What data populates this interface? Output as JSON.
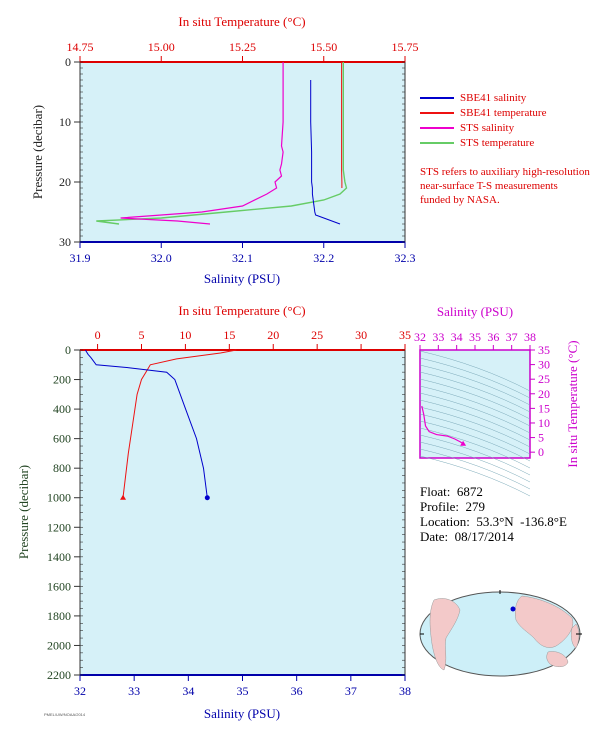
{
  "colors": {
    "salinity": "#0000cc",
    "temperature": "#ee1111",
    "sts_salinity": "#ee00cc",
    "sts_temperature": "#66cc66",
    "plot_bg": "#d6f1f8",
    "top_axis": "#dd0000",
    "bottom_axis": "#0000aa",
    "mini_axis": "#cc00cc",
    "left_axis": "#333333",
    "land": "#f3c9c9",
    "ocean": "#cdeff8"
  },
  "legend": {
    "items": [
      {
        "label": "SBE41 salinity",
        "color": "#0000cc"
      },
      {
        "label": "SBE41 temperature",
        "color": "#ee1111"
      },
      {
        "label": "STS salinity",
        "color": "#ee00cc"
      },
      {
        "label": "STS temperature",
        "color": "#66cc66"
      }
    ]
  },
  "note": "STS refers to auxiliary high-resolution near-surface T-S measurements funded by NASA.",
  "info": {
    "float_label": "Float:",
    "float": "6872",
    "profile_label": "Profile:",
    "profile": "279",
    "location_label": "Location:",
    "location": "53.3°N  -136.8°E",
    "date_label": "Date:",
    "date": "08/17/2014"
  },
  "credit": "PMEL/UW/NOAA/2014",
  "chart_data": [
    {
      "type": "line",
      "name": "near-surface",
      "top_axis_label": "In situ Temperature (°C)",
      "bottom_axis_label": "Salinity (PSU)",
      "left_axis_label": "Pressure (decibar)",
      "top_ticks": [
        "14.75",
        "15.00",
        "15.25",
        "15.50",
        "15.75"
      ],
      "bottom_ticks": [
        "31.9",
        "32.0",
        "32.1",
        "32.2",
        "32.3"
      ],
      "left_ticks": [
        "0",
        "10",
        "20",
        "30"
      ],
      "temp_range": [
        14.75,
        15.75
      ],
      "sal_range": [
        31.9,
        32.3
      ],
      "p_range": [
        0,
        30
      ],
      "sbe41_salinity": {
        "x": [
          32.184,
          32.184,
          32.185,
          32.185,
          32.186,
          32.186,
          32.187,
          32.188,
          32.189,
          32.19,
          32.2,
          32.21,
          32.22
        ],
        "p": [
          3,
          10,
          15,
          20,
          21,
          22,
          23,
          24,
          25,
          25.5,
          26,
          26.5,
          27
        ]
      },
      "sbe41_temperature": {
        "x": [
          15.555,
          15.555,
          15.555,
          15.556,
          15.556
        ],
        "p": [
          0,
          10,
          18,
          20,
          21
        ]
      },
      "sts_salinity": {
        "x": [
          32.15,
          32.15,
          32.148,
          32.15,
          32.148,
          32.146,
          32.148,
          32.14,
          32.142,
          32.13,
          32.1,
          32.05,
          32.0,
          31.95,
          32.02,
          32.06
        ],
        "p": [
          0,
          10,
          14,
          15,
          17,
          18,
          19,
          20,
          21,
          22,
          24,
          25,
          25.5,
          26,
          26.5,
          27
        ]
      },
      "sts_temperature": {
        "x": [
          15.56,
          15.56,
          15.56,
          15.565,
          15.57,
          15.55,
          15.5,
          15.4,
          15.2,
          15.0,
          14.8,
          14.87
        ],
        "p": [
          0,
          10,
          18,
          20,
          21,
          22,
          23,
          24,
          25,
          26,
          26.5,
          27
        ]
      }
    },
    {
      "type": "line",
      "name": "full-profile",
      "top_axis_label": "In situ Temperature (°C)",
      "bottom_axis_label": "Salinity (PSU)",
      "left_axis_label": "Pressure (decibar)",
      "top_ticks": [
        "0",
        "5",
        "10",
        "15",
        "20",
        "25",
        "30",
        "35"
      ],
      "bottom_ticks": [
        "32",
        "33",
        "34",
        "35",
        "36",
        "37",
        "38"
      ],
      "left_ticks": [
        "0",
        "200",
        "400",
        "600",
        "800",
        "1000",
        "1200",
        "1400",
        "1600",
        "1800",
        "2000",
        "2200"
      ],
      "temp_range": [
        -2,
        35
      ],
      "sal_range": [
        32,
        38
      ],
      "p_range": [
        0,
        2200
      ],
      "salinity": {
        "x": [
          32.1,
          32.15,
          32.2,
          32.3,
          32.9,
          33.6,
          33.75,
          33.95,
          34.15,
          34.28,
          34.35
        ],
        "p": [
          0,
          30,
          50,
          100,
          120,
          150,
          200,
          400,
          600,
          800,
          1000
        ]
      },
      "temperature": {
        "x": [
          15.8,
          14,
          9,
          6,
          5.5,
          5,
          4.5,
          4,
          3.5,
          2.9
        ],
        "p": [
          0,
          20,
          60,
          100,
          150,
          200,
          300,
          500,
          700,
          1000
        ]
      }
    },
    {
      "type": "line",
      "name": "ts-diagram",
      "top_axis_label": "Salinity (PSU)",
      "right_axis_label": "In situ Temperature (°C)",
      "top_ticks": [
        "32",
        "33",
        "34",
        "35",
        "36",
        "37",
        "38"
      ],
      "right_ticks": [
        "0",
        "5",
        "10",
        "15",
        "20",
        "25",
        "30",
        "35"
      ],
      "sal_range": [
        32,
        38
      ],
      "temp_range": [
        -2,
        35
      ],
      "ts": {
        "s": [
          32.1,
          32.2,
          32.3,
          32.5,
          32.9,
          33.5,
          33.9,
          34.2,
          34.35
        ],
        "t": [
          15.8,
          13,
          9,
          7,
          6,
          5.5,
          4.5,
          3.5,
          2.9
        ]
      }
    }
  ]
}
